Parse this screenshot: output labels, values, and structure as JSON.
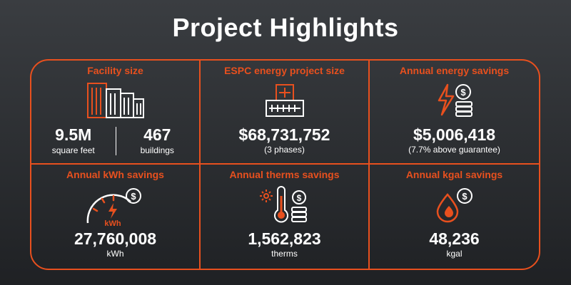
{
  "title": "Project Highlights",
  "accent_color": "#e8501e",
  "cells": {
    "facility": {
      "label": "Facility size",
      "icon": "buildings-icon",
      "left_value": "9.5M",
      "left_unit": "square feet",
      "right_value": "467",
      "right_unit": "buildings"
    },
    "espc": {
      "label": "ESPC energy project size",
      "icon": "office-building-icon",
      "value": "$68,731,752",
      "sub": "(3 phases)"
    },
    "energy": {
      "label": "Annual energy savings",
      "icon": "lightning-coins-icon",
      "value": "$5,006,418",
      "sub": "(7.7% above guarantee)"
    },
    "kwh": {
      "label": "Annual kWh savings",
      "icon": "meter-gauge-icon",
      "icon_text": "kWh",
      "value": "27,760,008",
      "sub": "kWh"
    },
    "therms": {
      "label": "Annual therms savings",
      "icon": "thermometer-coins-icon",
      "value": "1,562,823",
      "sub": "therms"
    },
    "kgal": {
      "label": "Annual kgal savings",
      "icon": "water-drops-icon",
      "value": "48,236",
      "sub": "kgal"
    }
  }
}
